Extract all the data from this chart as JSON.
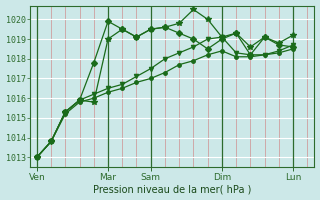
{
  "title": "",
  "xlabel": "Pression niveau de la mer( hPa )",
  "bg_color": "#cce8e8",
  "line_color": "#1a6b1a",
  "ylim": [
    1012.5,
    1020.7
  ],
  "yticks": [
    1013,
    1014,
    1015,
    1016,
    1017,
    1018,
    1019,
    1020
  ],
  "xlim": [
    0,
    20
  ],
  "xtick_labels": [
    "Ven",
    "Mar",
    "Sam",
    "Dim",
    "Lun"
  ],
  "xtick_positions": [
    0.5,
    5.5,
    8.5,
    13.5,
    18.5
  ],
  "major_vlines": [
    0.5,
    5.5,
    8.5,
    13.5,
    18.5
  ],
  "minor_vlines_pink": [
    1.5,
    2.5,
    3.5,
    4.5,
    6.5,
    7.5,
    9.5,
    10.5,
    11.5,
    12.5,
    14.5,
    15.5,
    16.5,
    17.5,
    19.5
  ],
  "series": [
    {
      "x": [
        0.5,
        1.5,
        2.5,
        3.5,
        4.5,
        5.5,
        6.5,
        7.5,
        8.5,
        9.5,
        10.5,
        11.5,
        12.5,
        13.5,
        14.5,
        15.5,
        16.5,
        17.5,
        18.5
      ],
      "y": [
        1013.0,
        1013.8,
        1015.3,
        1015.9,
        1015.8,
        1019.0,
        1019.5,
        1019.1,
        1019.5,
        1019.6,
        1019.8,
        1020.5,
        1020.0,
        1019.1,
        1019.3,
        1018.6,
        1019.1,
        1018.8,
        1019.2
      ],
      "marker": "*",
      "ms": 4
    },
    {
      "x": [
        0.5,
        1.5,
        2.5,
        3.5,
        4.5,
        5.5,
        6.5,
        7.5,
        8.5,
        9.5,
        10.5,
        11.5,
        12.5,
        13.5,
        14.5,
        15.5,
        16.5,
        17.5,
        18.5
      ],
      "y": [
        1013.0,
        1013.8,
        1015.3,
        1015.9,
        1017.8,
        1019.9,
        1019.5,
        1019.1,
        1019.5,
        1019.6,
        1019.3,
        1019.0,
        1018.5,
        1019.0,
        1019.3,
        1018.2,
        1019.1,
        1018.7,
        1018.6
      ],
      "marker": "D",
      "ms": 3
    },
    {
      "x": [
        0.5,
        1.5,
        2.5,
        3.5,
        4.5,
        5.5,
        6.5,
        7.5,
        8.5,
        9.5,
        10.5,
        11.5,
        12.5,
        13.5,
        14.5,
        15.5,
        16.5,
        17.5,
        18.5
      ],
      "y": [
        1013.0,
        1013.8,
        1015.3,
        1015.9,
        1016.2,
        1016.5,
        1016.7,
        1017.1,
        1017.5,
        1018.0,
        1018.3,
        1018.6,
        1019.0,
        1019.1,
        1018.3,
        1018.2,
        1018.2,
        1018.4,
        1018.7
      ],
      "marker": "v",
      "ms": 3
    },
    {
      "x": [
        0.5,
        1.5,
        2.5,
        3.5,
        4.5,
        5.5,
        6.5,
        7.5,
        8.5,
        9.5,
        10.5,
        11.5,
        12.5,
        13.5,
        14.5,
        15.5,
        16.5,
        17.5,
        18.5
      ],
      "y": [
        1013.0,
        1013.8,
        1015.2,
        1015.8,
        1016.0,
        1016.3,
        1016.5,
        1016.8,
        1017.0,
        1017.3,
        1017.7,
        1017.9,
        1018.2,
        1018.4,
        1018.1,
        1018.1,
        1018.2,
        1018.3,
        1018.5
      ],
      "marker": "o",
      "ms": 2.5
    }
  ]
}
